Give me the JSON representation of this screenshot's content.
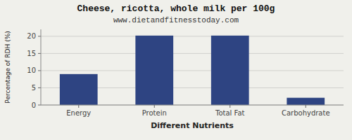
{
  "chart_data": {
    "type": "bar",
    "title": "Cheese, ricotta, whole milk per 100g",
    "subtitle": "www.dietandfitnesstoday.com",
    "xlabel": "Different Nutrients",
    "ylabel": "Percentage of RDH (%)",
    "categories": [
      "Energy",
      "Protein",
      "Total Fat",
      "Carbohydrate"
    ],
    "values": [
      9.0,
      20.2,
      20.2,
      2.1
    ],
    "color": "#2e4482",
    "ylim": [
      0,
      22
    ],
    "yticks": [
      0,
      5,
      10,
      15,
      20
    ],
    "grid": true
  }
}
